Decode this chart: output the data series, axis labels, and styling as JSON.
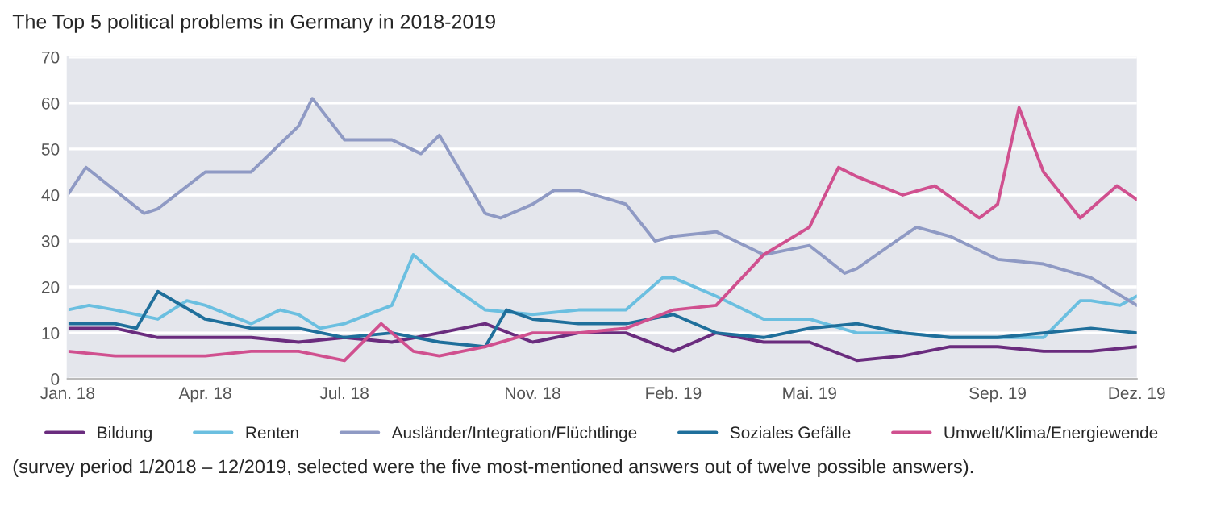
{
  "chart_data": {
    "type": "line",
    "title": "The Top 5 political problems in Germany in 2018-2019",
    "annotations": [
      "(survey period 1/2018 – 12/2019, selected were the five most-mentioned answers out of twelve possible answers)."
    ],
    "xlim": [
      "2018-01-01",
      "2019-12-01"
    ],
    "xticks": [
      {
        "value": "2018-01-01",
        "label": "Jan. 18"
      },
      {
        "value": "2018-04-01",
        "label": "Apr. 18"
      },
      {
        "value": "2018-07-01",
        "label": "Jul. 18"
      },
      {
        "value": "2018-11-01",
        "label": "Nov. 18"
      },
      {
        "value": "2019-02-01",
        "label": "Feb. 19"
      },
      {
        "value": "2019-05-01",
        "label": "Mai. 19"
      },
      {
        "value": "2019-09-01",
        "label": "Sep. 19"
      },
      {
        "value": "2019-12-01",
        "label": "Dez. 19"
      }
    ],
    "ylim": [
      0,
      70
    ],
    "yticks": [
      0,
      10,
      20,
      30,
      40,
      50,
      60,
      70
    ],
    "grid": "y",
    "legend": "bottom",
    "series": [
      {
        "name": "Bildung",
        "color": "#6a2c7e",
        "x": [
          "2018-01-01",
          "2018-02-01",
          "2018-03-01",
          "2018-04-01",
          "2018-05-01",
          "2018-06-01",
          "2018-07-01",
          "2018-08-01",
          "2018-09-01",
          "2018-10-01",
          "2018-11-01",
          "2018-12-01",
          "2019-01-01",
          "2019-02-01",
          "2019-03-01",
          "2019-04-01",
          "2019-05-01",
          "2019-06-01",
          "2019-07-01",
          "2019-08-01",
          "2019-09-01",
          "2019-10-01",
          "2019-11-01",
          "2019-12-01"
        ],
        "values": [
          11,
          11,
          9,
          9,
          9,
          8,
          9,
          8,
          10,
          12,
          8,
          10,
          10,
          6,
          10,
          8,
          8,
          4,
          5,
          7,
          7,
          6,
          6,
          7
        ]
      },
      {
        "name": "Renten",
        "color": "#6bbfe0",
        "x": [
          "2018-01-01",
          "2018-01-15",
          "2018-02-01",
          "2018-03-01",
          "2018-03-20",
          "2018-04-01",
          "2018-05-01",
          "2018-05-20",
          "2018-06-01",
          "2018-06-15",
          "2018-07-01",
          "2018-08-01",
          "2018-08-15",
          "2018-09-01",
          "2018-10-01",
          "2018-11-01",
          "2018-12-01",
          "2019-01-01",
          "2019-01-25",
          "2019-02-01",
          "2019-03-01",
          "2019-04-01",
          "2019-05-01",
          "2019-06-01",
          "2019-07-01",
          "2019-08-01",
          "2019-09-01",
          "2019-10-01",
          "2019-10-25",
          "2019-11-01",
          "2019-11-20",
          "2019-12-01"
        ],
        "values": [
          15,
          16,
          15,
          13,
          17,
          16,
          12,
          15,
          14,
          11,
          12,
          16,
          27,
          22,
          15,
          14,
          15,
          15,
          22,
          22,
          18,
          13,
          13,
          10,
          10,
          9,
          9,
          9,
          17,
          17,
          16,
          18
        ]
      },
      {
        "name": "Ausländer/Integration/Flüchtlinge",
        "color": "#8f9ac4",
        "x": [
          "2018-01-01",
          "2018-01-13",
          "2018-02-01",
          "2018-02-20",
          "2018-03-01",
          "2018-04-01",
          "2018-05-01",
          "2018-06-01",
          "2018-06-10",
          "2018-07-01",
          "2018-08-01",
          "2018-08-20",
          "2018-09-01",
          "2018-10-01",
          "2018-10-11",
          "2018-11-01",
          "2018-11-15",
          "2018-12-01",
          "2019-01-01",
          "2019-01-20",
          "2019-02-01",
          "2019-03-01",
          "2019-04-01",
          "2019-05-01",
          "2019-05-24",
          "2019-06-01",
          "2019-07-01",
          "2019-07-10",
          "2019-08-01",
          "2019-09-01",
          "2019-10-01",
          "2019-11-01",
          "2019-12-01"
        ],
        "values": [
          40,
          46,
          41,
          36,
          37,
          45,
          45,
          55,
          61,
          52,
          52,
          49,
          53,
          36,
          35,
          38,
          41,
          41,
          38,
          30,
          31,
          32,
          27,
          29,
          23,
          24,
          31,
          33,
          31,
          26,
          25,
          22,
          16
        ]
      },
      {
        "name": "Soziales Gefälle",
        "color": "#1f6f9b",
        "x": [
          "2018-01-01",
          "2018-02-01",
          "2018-02-15",
          "2018-03-01",
          "2018-04-01",
          "2018-05-01",
          "2018-06-01",
          "2018-07-01",
          "2018-08-01",
          "2018-09-01",
          "2018-10-01",
          "2018-10-15",
          "2018-11-01",
          "2018-12-01",
          "2019-01-01",
          "2019-02-01",
          "2019-03-01",
          "2019-04-01",
          "2019-05-01",
          "2019-06-01",
          "2019-07-01",
          "2019-08-01",
          "2019-09-01",
          "2019-10-01",
          "2019-11-01",
          "2019-12-01"
        ],
        "values": [
          12,
          12,
          11,
          19,
          13,
          11,
          11,
          9,
          10,
          8,
          7,
          15,
          13,
          12,
          12,
          14,
          10,
          9,
          11,
          12,
          10,
          9,
          9,
          10,
          11,
          10
        ]
      },
      {
        "name": "Umwelt/Klima/Energiewende",
        "color": "#d0508f",
        "x": [
          "2018-01-01",
          "2018-02-01",
          "2018-03-01",
          "2018-04-01",
          "2018-05-01",
          "2018-06-01",
          "2018-07-01",
          "2018-07-25",
          "2018-08-15",
          "2018-09-01",
          "2018-10-01",
          "2018-11-01",
          "2018-12-01",
          "2019-01-01",
          "2019-02-01",
          "2019-03-01",
          "2019-04-01",
          "2019-05-01",
          "2019-05-20",
          "2019-06-01",
          "2019-07-01",
          "2019-07-22",
          "2019-08-20",
          "2019-09-01",
          "2019-09-15",
          "2019-10-01",
          "2019-10-25",
          "2019-11-18",
          "2019-12-01"
        ],
        "values": [
          6,
          5,
          5,
          5,
          6,
          6,
          4,
          12,
          6,
          5,
          7,
          10,
          10,
          11,
          15,
          16,
          27,
          33,
          46,
          44,
          40,
          42,
          35,
          38,
          59,
          45,
          35,
          42,
          39
        ]
      }
    ]
  }
}
